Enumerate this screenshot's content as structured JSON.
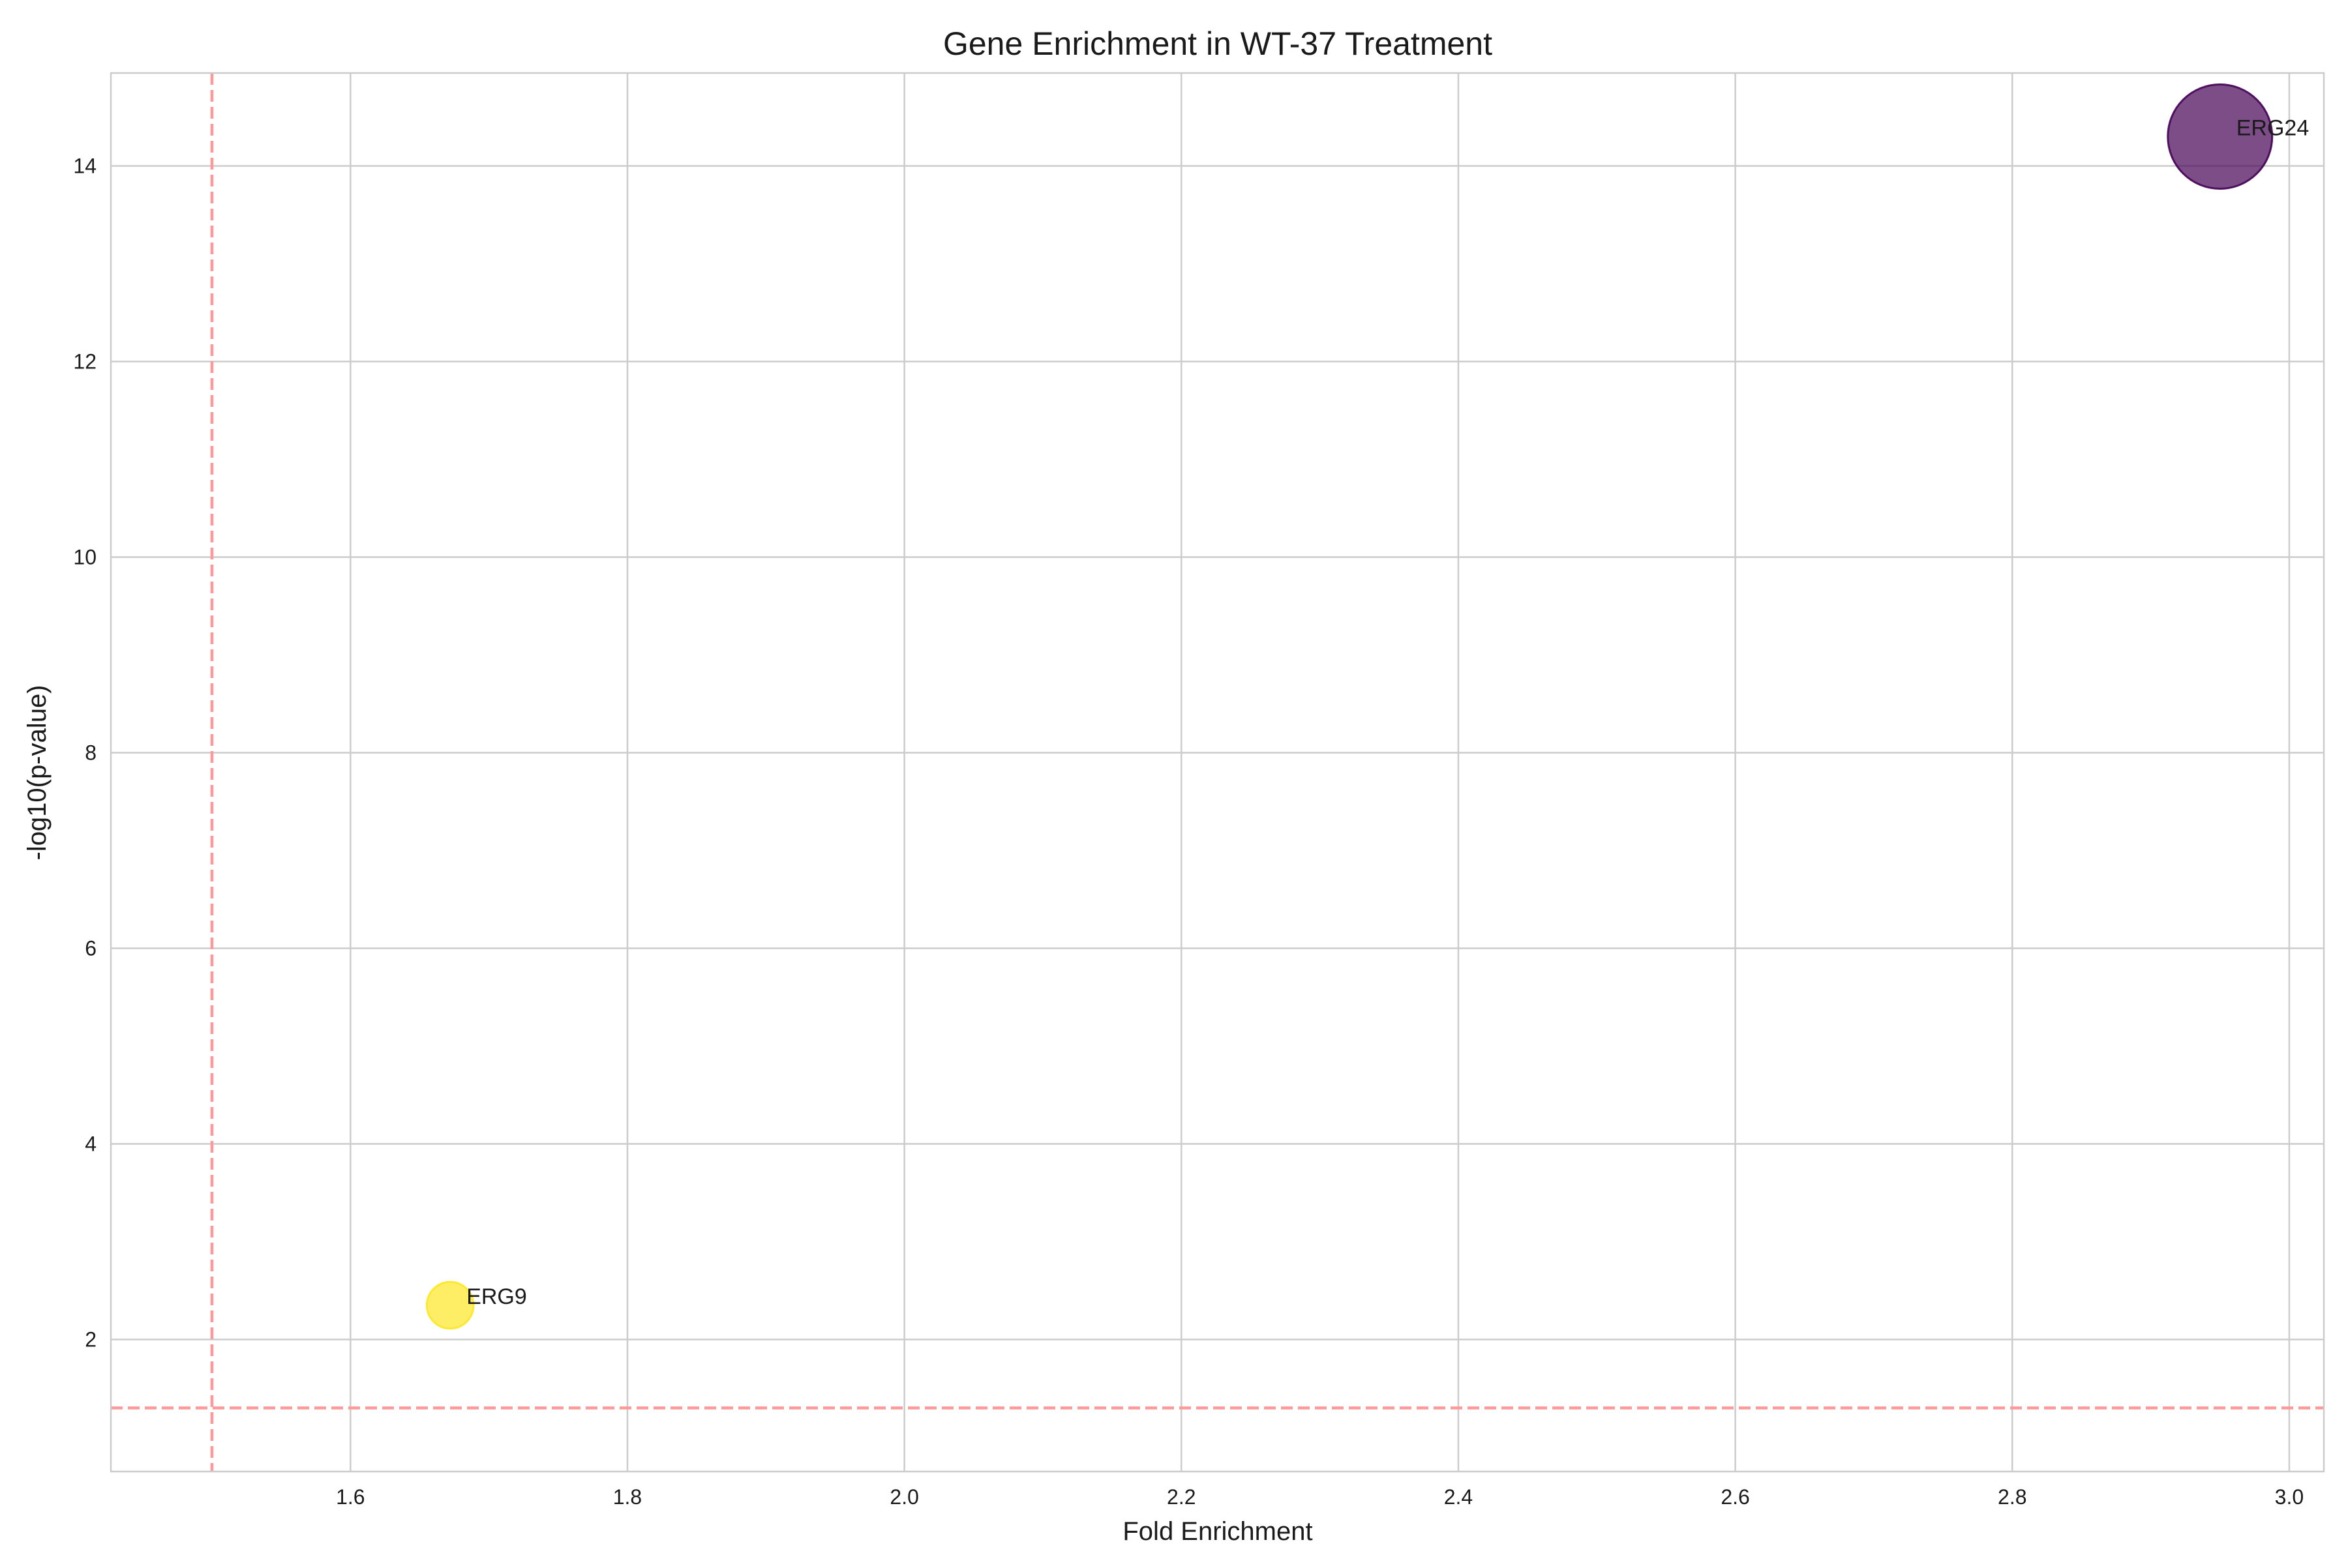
{
  "chart_data": {
    "type": "scatter",
    "title": "Gene Enrichment in WT-37 Treatment",
    "xlabel": "Fold Enrichment",
    "ylabel": "-log10(p-value)",
    "xlim": [
      1.427,
      3.025
    ],
    "ylim": [
      0.65,
      14.95
    ],
    "xticks": [
      1.6,
      1.8,
      2.0,
      2.2,
      2.4,
      2.6,
      2.8,
      3.0
    ],
    "yticks": [
      2,
      4,
      6,
      8,
      10,
      12,
      14
    ],
    "xtick_labels": [
      "1.6",
      "1.8",
      "2.0",
      "2.2",
      "2.4",
      "2.6",
      "2.8",
      "3.0"
    ],
    "ytick_labels": [
      "2",
      "4",
      "6",
      "8",
      "10",
      "12",
      "14"
    ],
    "grid": true,
    "colormap": "viridis",
    "points": [
      {
        "label": "ERG9",
        "x": 1.672,
        "y": 2.35,
        "color": "#fde725",
        "relative_size": 0.2,
        "opacity": 0.7
      },
      {
        "label": "ERG24",
        "x": 2.95,
        "y": 14.3,
        "color": "#440154",
        "relative_size": 1.0,
        "opacity": 0.7
      }
    ],
    "threshold_lines": [
      {
        "orientation": "vertical",
        "x": 1.5,
        "color": "#ff9999",
        "style": "dashed"
      },
      {
        "orientation": "horizontal",
        "y": 1.3,
        "color": "#ff9999",
        "style": "dashed"
      }
    ],
    "colors": {
      "grid": "#cccccc",
      "spine": "#cccccc",
      "threshold": "#ff9999"
    }
  }
}
